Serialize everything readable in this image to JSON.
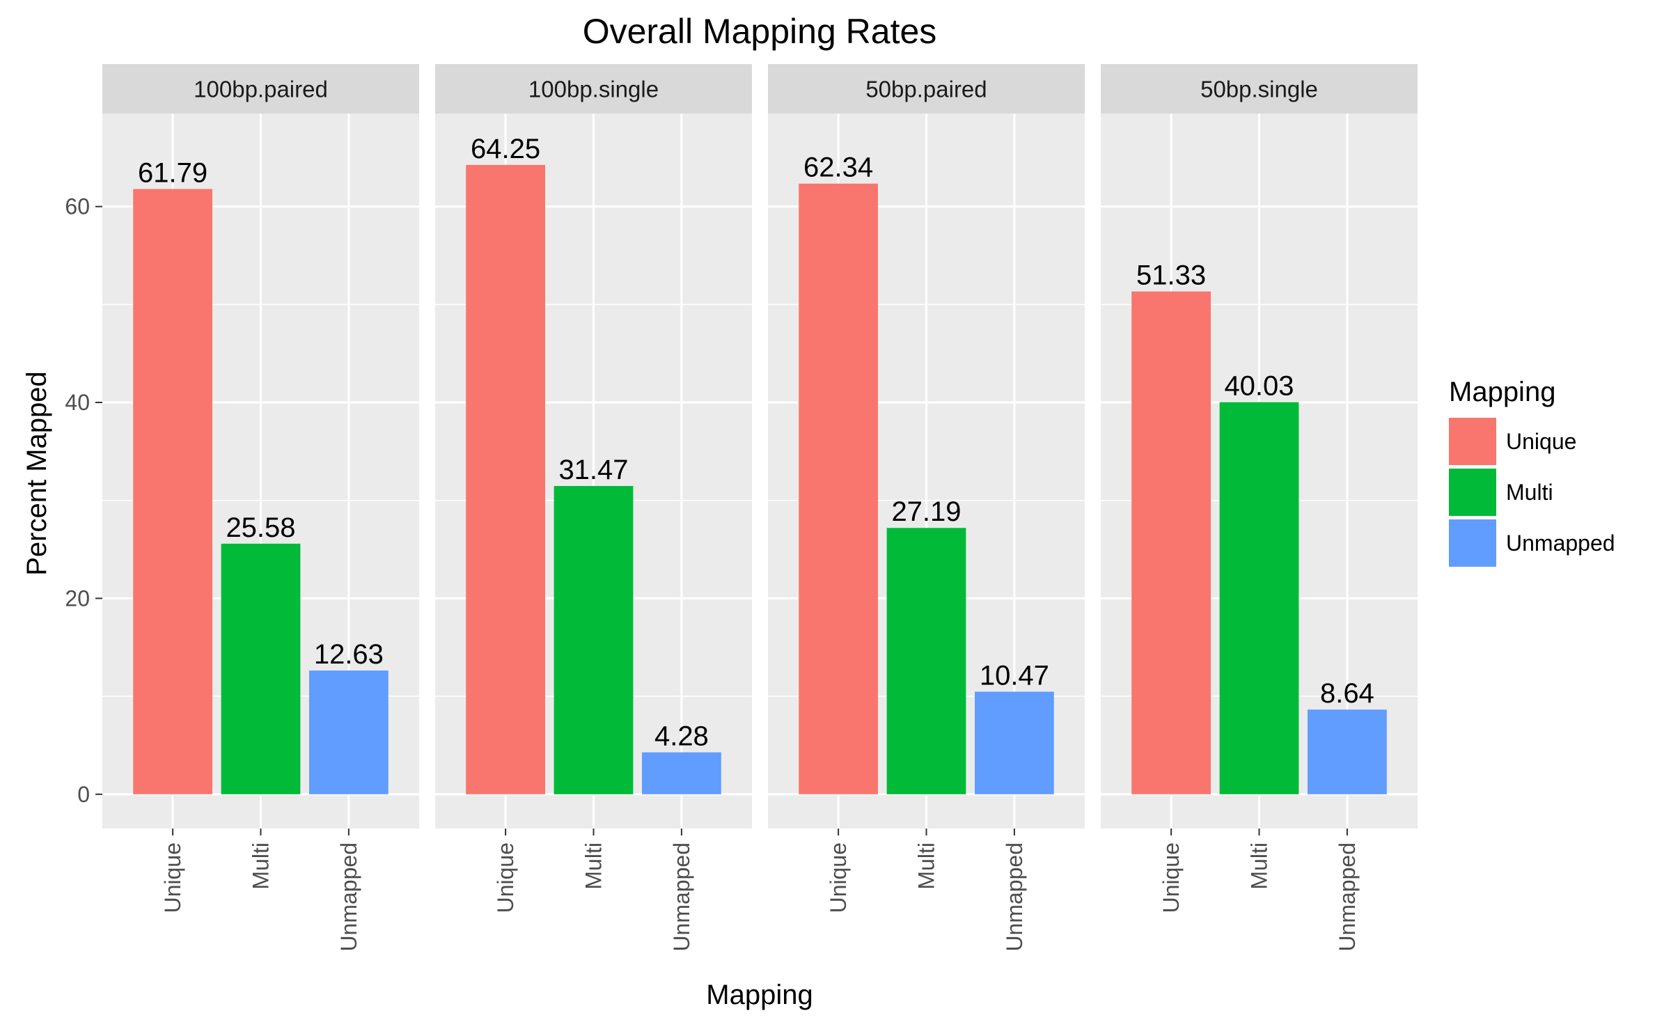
{
  "chart_data": {
    "type": "bar",
    "title": "Overall Mapping Rates",
    "xlabel": "Mapping",
    "ylabel": "Percent Mapped",
    "ylim": [
      -3.5,
      69.5
    ],
    "y_ticks": [
      0,
      20,
      40,
      60
    ],
    "grid": true,
    "categories": [
      "Unique",
      "Multi",
      "Unmapped"
    ],
    "facets": [
      {
        "name": "100bp.paired",
        "values": [
          61.79,
          25.58,
          12.63
        ],
        "labels": [
          "61.79",
          "25.58",
          "12.63"
        ]
      },
      {
        "name": "100bp.single",
        "values": [
          64.25,
          31.47,
          4.28
        ],
        "labels": [
          "64.25",
          "31.47",
          "4.28"
        ]
      },
      {
        "name": "50bp.paired",
        "values": [
          62.34,
          27.19,
          10.47
        ],
        "labels": [
          "62.34",
          "27.19",
          "10.47"
        ]
      },
      {
        "name": "50bp.single",
        "values": [
          51.33,
          40.03,
          8.64
        ],
        "labels": [
          "51.33",
          "40.03",
          "8.64"
        ]
      }
    ],
    "legend": {
      "title": "Mapping",
      "position": "right",
      "items": [
        "Unique",
        "Multi",
        "Unmapped"
      ]
    },
    "colors": {
      "Unique": "#F8766D",
      "Multi": "#00BA38",
      "Unmapped": "#619CFF",
      "panel_background": "#EBEBEB",
      "strip_background": "#D9D9D9",
      "grid_major": "#FFFFFF"
    }
  }
}
